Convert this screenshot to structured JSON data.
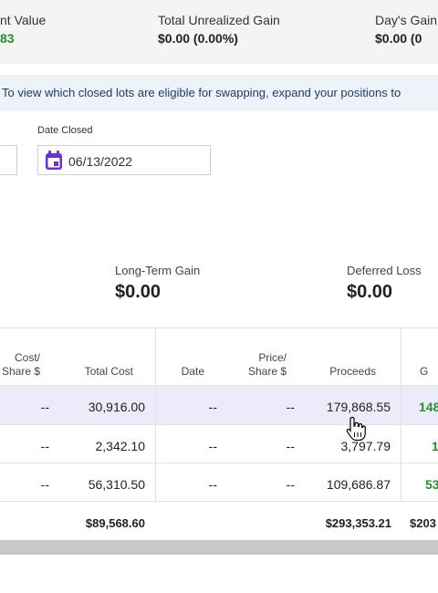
{
  "summary": {
    "account_value_label": "nt Value",
    "account_value": "83",
    "unrealized_label": "Total Unrealized Gain",
    "unrealized_value": "$0.00  (0.00%)",
    "days_gain_label": "Day's Gain",
    "days_gain_value": "$0.00  (0"
  },
  "banner": {
    "text": "To view which closed lots are eligible for swapping, expand your positions to"
  },
  "date_closed": {
    "label": "Date Closed",
    "value": "06/13/2022"
  },
  "gains": {
    "long_term_label": "Long-Term Gain",
    "long_term_value": "$0.00",
    "deferred_label": "Deferred Loss",
    "deferred_value": "$0.00"
  },
  "table": {
    "headers": {
      "cost_share": [
        "Cost/",
        "Share $"
      ],
      "total_cost": "Total Cost",
      "date": "Date",
      "price_share": [
        "Price/",
        "Share $"
      ],
      "proceeds": "Proceeds",
      "gain": "G"
    },
    "rows": [
      {
        "cost_share": "--",
        "total_cost": "30,916.00",
        "date": "--",
        "price_share": "--",
        "proceeds": "179,868.55",
        "gain": "148"
      },
      {
        "cost_share": "--",
        "total_cost": "2,342.10",
        "date": "--",
        "price_share": "--",
        "proceeds": "3,797.79",
        "gain": "1"
      },
      {
        "cost_share": "--",
        "total_cost": "56,310.50",
        "date": "--",
        "price_share": "--",
        "proceeds": "109,686.87",
        "gain": "53"
      }
    ],
    "totals": {
      "total_cost": "$89,568.60",
      "proceeds": "$293,353.21",
      "gain": "$203"
    }
  },
  "colors": {
    "gain_green": "#24902f",
    "selected_row": "#ecebfa",
    "calendar_purple": "#6b2fd8"
  }
}
